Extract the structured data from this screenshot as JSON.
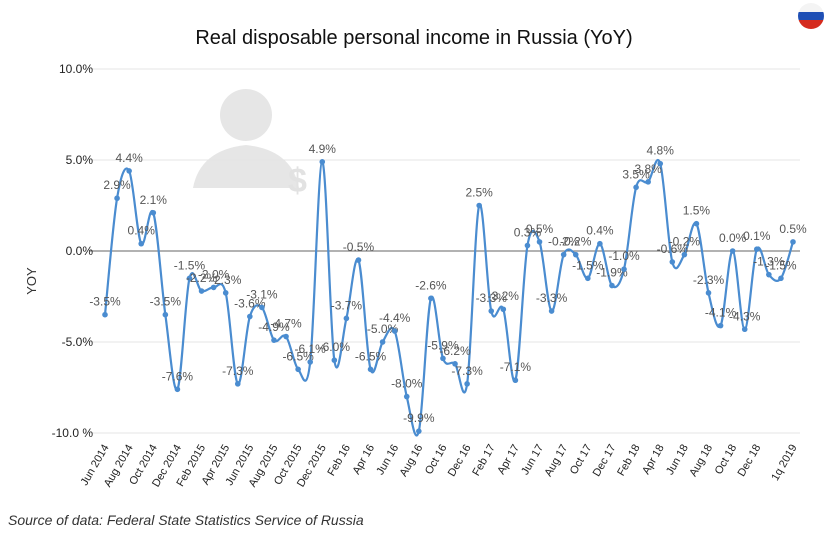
{
  "chart_data": {
    "type": "line",
    "title": "Real disposable personal income in Russia (YoY)",
    "y_label": "YOY",
    "source": "Source of data: Federal State Statistics Service of Russia",
    "categories": [
      "Jun 2014",
      null,
      "Aug 2014",
      null,
      "Oct 2014",
      null,
      "Dec 2014",
      null,
      "Feb 2015",
      null,
      "Apr 2015",
      null,
      "Jun 2015",
      null,
      "Aug 2015",
      null,
      "Oct 2015",
      null,
      "Dec 2015",
      null,
      "Feb 16",
      null,
      "Apr 16",
      null,
      "Jun 16",
      null,
      "Aug 16",
      null,
      "Oct 16",
      null,
      "Dec 16",
      null,
      "Feb 17",
      null,
      "Apr 17",
      null,
      "Jun 17",
      null,
      "Aug 17",
      null,
      "Oct 17",
      null,
      "Dec 17",
      null,
      "Feb 18",
      null,
      "Apr 18",
      null,
      "Jun 18",
      null,
      "Aug 18",
      null,
      "Oct 18",
      null,
      "Dec 18",
      null,
      null,
      "1q 2019"
    ],
    "series": [
      {
        "name": "YOY",
        "color": "#4a8cd0",
        "values": [
          -3.5,
          2.9,
          4.4,
          0.4,
          2.1,
          -3.5,
          -7.6,
          -1.5,
          -2.2,
          -2.0,
          -2.3,
          -7.3,
          -3.6,
          -3.1,
          -4.9,
          -4.7,
          -6.5,
          -6.1,
          4.9,
          -6.0,
          -3.7,
          -0.5,
          -6.5,
          -5.0,
          -4.4,
          -8.0,
          -9.9,
          -2.6,
          -5.9,
          -6.2,
          -7.3,
          2.5,
          -3.3,
          -3.2,
          -7.1,
          0.3,
          0.5,
          -3.3,
          -0.2,
          -0.2,
          -1.5,
          0.4,
          -1.9,
          -1.0,
          3.5,
          3.8,
          4.8,
          -0.6,
          -0.2,
          1.5,
          -2.3,
          -4.1,
          0.0,
          -4.3,
          0.1,
          -1.3,
          -1.5,
          0.5
        ],
        "value_labels": [
          "-3.5%",
          "2.9%",
          "4.4%",
          "0.4%",
          "2.1%",
          "-3.5%",
          "-7.6%",
          "-1.5%",
          "-2.2%",
          "-2.0%",
          "-2.3%",
          "-7.3%",
          "-3.6%",
          "-3.1%",
          "-4.9%",
          "-4.7%",
          "-6.5%",
          "-6.1%",
          "4.9%",
          "-6.0%",
          "-3.7%",
          "-0.5%",
          "-6.5%",
          "-5.0%",
          "-4.4%",
          "-8.0%",
          "-9.9%",
          "-2.6%",
          "-5.9%",
          "-6.2%",
          "-7.3%",
          "2.5%",
          "-3.3%",
          "-3.2%",
          "-7.1%",
          "0.3%",
          "0.5%",
          "-3.3%",
          "-0.2%",
          "-0.2%",
          "-1.5%",
          "0.4%",
          "-1.9%",
          "-1.0%",
          "3.5%",
          "3.8%",
          "4.8%",
          "-0.6%",
          "-0.2%",
          "1.5%",
          "-2.3%",
          "-4.1%",
          "0.0%",
          "-4.3%",
          "0.1%",
          "-1.3%",
          "-1.5%",
          "0.5%"
        ]
      }
    ],
    "ylim": [
      -10,
      10
    ],
    "yticks": [
      {
        "value": -10,
        "label": "-10.0 %"
      },
      {
        "value": -5,
        "label": "-5.0%"
      },
      {
        "value": 0,
        "label": "0.0%"
      },
      {
        "value": 5,
        "label": "5.0%"
      },
      {
        "value": 10,
        "label": "10.0%"
      }
    ],
    "grid": true
  }
}
